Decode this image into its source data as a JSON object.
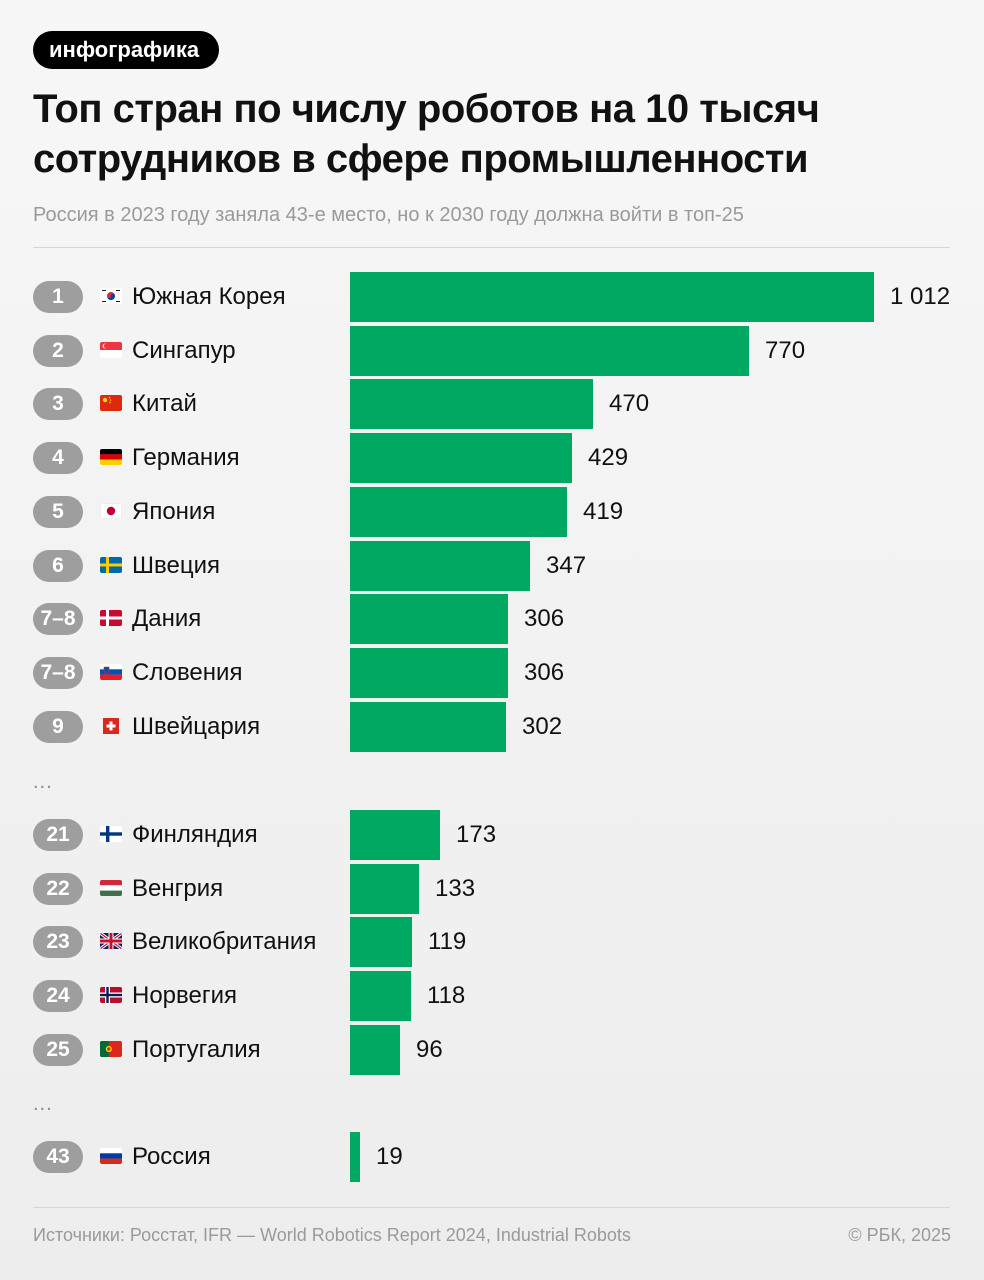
{
  "header": {
    "badge": "инфографика",
    "title": "Топ стран по числу роботов на 10 тысяч сотрудников в сфере промышленности",
    "subtitle": "Россия в 2023 году заняла 43-е место, но к 2030 году должна войти в топ-25"
  },
  "chart_data": {
    "type": "bar",
    "orientation": "horizontal",
    "title": "Топ стран по числу роботов на 10 тысяч сотрудников в сфере промышленности",
    "xlim": [
      0,
      1012
    ],
    "groups": [
      [
        {
          "rank": "1",
          "country": "Южная Корея",
          "flag": "kr",
          "value": 1012,
          "label": "1 012"
        },
        {
          "rank": "2",
          "country": "Сингапур",
          "flag": "sg",
          "value": 770,
          "label": "770"
        },
        {
          "rank": "3",
          "country": "Китай",
          "flag": "cn",
          "value": 470,
          "label": "470"
        },
        {
          "rank": "4",
          "country": "Германия",
          "flag": "de",
          "value": 429,
          "label": "429"
        },
        {
          "rank": "5",
          "country": "Япония",
          "flag": "jp",
          "value": 419,
          "label": "419"
        },
        {
          "rank": "6",
          "country": "Швеция",
          "flag": "se",
          "value": 347,
          "label": "347"
        },
        {
          "rank": "7–8",
          "country": "Дания",
          "flag": "dk",
          "value": 306,
          "label": "306"
        },
        {
          "rank": "7–8",
          "country": "Словения",
          "flag": "si",
          "value": 306,
          "label": "306"
        },
        {
          "rank": "9",
          "country": "Швейцария",
          "flag": "ch",
          "value": 302,
          "label": "302"
        }
      ],
      [
        {
          "rank": "21",
          "country": "Финляндия",
          "flag": "fi",
          "value": 173,
          "label": "173"
        },
        {
          "rank": "22",
          "country": "Венгрия",
          "flag": "hu",
          "value": 133,
          "label": "133"
        },
        {
          "rank": "23",
          "country": "Великобритания",
          "flag": "gb",
          "value": 119,
          "label": "119"
        },
        {
          "rank": "24",
          "country": "Норвегия",
          "flag": "no",
          "value": 118,
          "label": "118"
        },
        {
          "rank": "25",
          "country": "Португалия",
          "flag": "pt",
          "value": 96,
          "label": "96"
        }
      ],
      [
        {
          "rank": "43",
          "country": "Россия",
          "flag": "ru",
          "value": 19,
          "label": "19"
        }
      ]
    ],
    "gap_marker": "...",
    "bar_color": "#00a862"
  },
  "footer": {
    "source": "Источники: Росстат, IFR — World Robotics Report 2024, Industrial Robots",
    "copyright": "© РБК, 2025"
  },
  "colors": {
    "accent": "#00a862",
    "rank_badge": "#9e9e9e",
    "muted_text": "#9a9a9a"
  }
}
